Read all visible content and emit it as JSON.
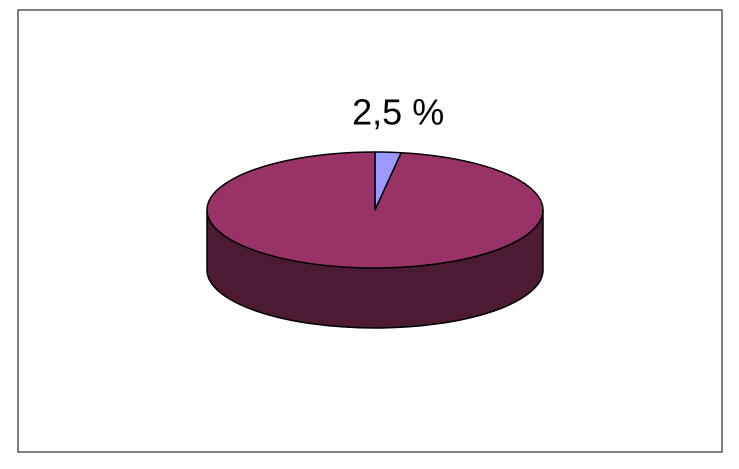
{
  "chart_data": {
    "type": "pie",
    "three_d": true,
    "values": [
      2.5,
      97.5
    ],
    "value_labels": [
      "2,5 %",
      null
    ],
    "colors": [
      "#9999ff",
      "#993366"
    ]
  }
}
